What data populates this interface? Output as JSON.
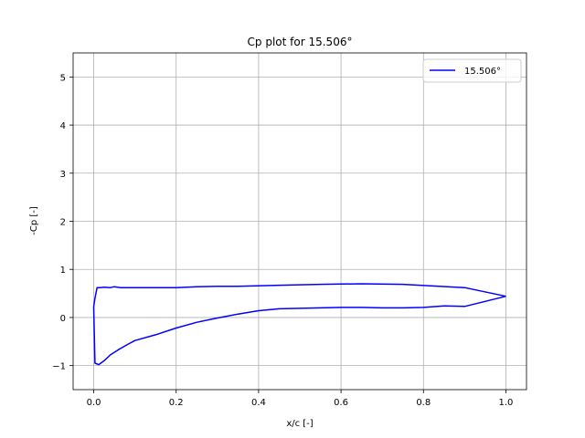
{
  "chart_data": {
    "type": "line",
    "title": "Cp plot for 15.506°",
    "xlabel": "x/c [-]",
    "ylabel": "-Cp [-]",
    "xlim": [
      -0.05,
      1.05
    ],
    "ylim": [
      -1.5,
      5.5
    ],
    "xticks": [
      0.0,
      0.2,
      0.4,
      0.6,
      0.8,
      1.0
    ],
    "xtick_labels": [
      "0.0",
      "0.2",
      "0.4",
      "0.6",
      "0.8",
      "1.0"
    ],
    "yticks": [
      -1,
      0,
      1,
      2,
      3,
      4,
      5
    ],
    "ytick_labels": [
      "−1",
      "0",
      "1",
      "2",
      "3",
      "4",
      "5"
    ],
    "grid": true,
    "legend_position": "top-right",
    "series": [
      {
        "name": "15.506°",
        "color": "#0000ff",
        "x": [
          1.0,
          0.9,
          0.75,
          0.65,
          0.55,
          0.45,
          0.35,
          0.3,
          0.25,
          0.2,
          0.15,
          0.1,
          0.08,
          0.065,
          0.05,
          0.04,
          0.025,
          0.015,
          0.008,
          0.003,
          0.0,
          0.003,
          0.012,
          0.025,
          0.04,
          0.06,
          0.08,
          0.1,
          0.15,
          0.2,
          0.25,
          0.3,
          0.35,
          0.4,
          0.45,
          0.5,
          0.55,
          0.6,
          0.65,
          0.7,
          0.75,
          0.8,
          0.85,
          0.9,
          1.0
        ],
        "y": [
          0.44,
          0.62,
          0.69,
          0.7,
          0.69,
          0.67,
          0.65,
          0.65,
          0.64,
          0.62,
          0.62,
          0.62,
          0.62,
          0.62,
          0.64,
          0.62,
          0.63,
          0.62,
          0.62,
          0.4,
          0.22,
          -0.95,
          -0.98,
          -0.9,
          -0.78,
          -0.67,
          -0.57,
          -0.48,
          -0.36,
          -0.22,
          -0.1,
          -0.01,
          0.07,
          0.14,
          0.18,
          0.19,
          0.2,
          0.21,
          0.21,
          0.2,
          0.2,
          0.21,
          0.24,
          0.23,
          0.44
        ]
      }
    ]
  }
}
